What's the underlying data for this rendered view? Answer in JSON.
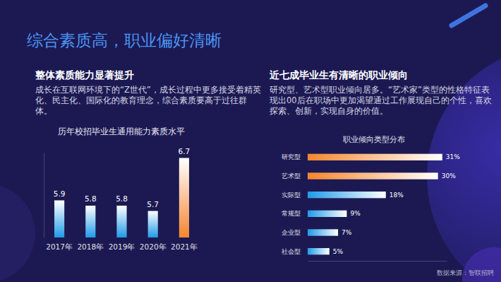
{
  "page": {
    "title": "综合素质高，职业偏好清晰",
    "left_heading": "整体素质能力显著提升",
    "left_text": "成长在互联网环境下的“Z世代”，成长过程中更多接受着精英化、民主化、国际化的教育理念，综合素质要高于过往群体。",
    "right_heading": "近七成毕业生有清晰的职业倾向",
    "right_text": "研究型、艺术型职业倾向居多。“艺术家”类型的性格特征表现出00后在职场中更加渴望通过工作展现自己的个性，喜欢探索、创新，实现自身的价值。",
    "source": "数据来源：智联招聘"
  },
  "chart_data": [
    {
      "type": "bar",
      "title": "历年校招毕业生通用能力素质水平",
      "categories": [
        "2017年",
        "2018年",
        "2019年",
        "2020年",
        "2021年"
      ],
      "values": [
        5.9,
        5.8,
        5.8,
        5.7,
        6.7
      ],
      "colors": [
        "#1f9be8",
        "#1f9be8",
        "#1f9be8",
        "#1f9be8",
        "#f5862f"
      ],
      "ylim": [
        5.2,
        6.8
      ],
      "data_labels": true,
      "tick_labels": "x"
    },
    {
      "type": "bar",
      "title": "职业倾向类型分布",
      "orientation": "horizontal",
      "categories": [
        "研究型",
        "艺术型",
        "实际型",
        "常规型",
        "企业型",
        "社会型"
      ],
      "values": [
        31,
        30,
        18,
        9,
        7,
        5
      ],
      "value_labels": [
        "31%",
        "30%",
        "18%",
        "9%",
        "7%",
        "5%"
      ],
      "colors": [
        "#f5862f",
        "#f5862f",
        "#1f9be8",
        "#1f9be8",
        "#1f9be8",
        "#1f9be8"
      ],
      "xlim": [
        0,
        32
      ],
      "data_labels": true,
      "tick_labels": "y"
    }
  ]
}
